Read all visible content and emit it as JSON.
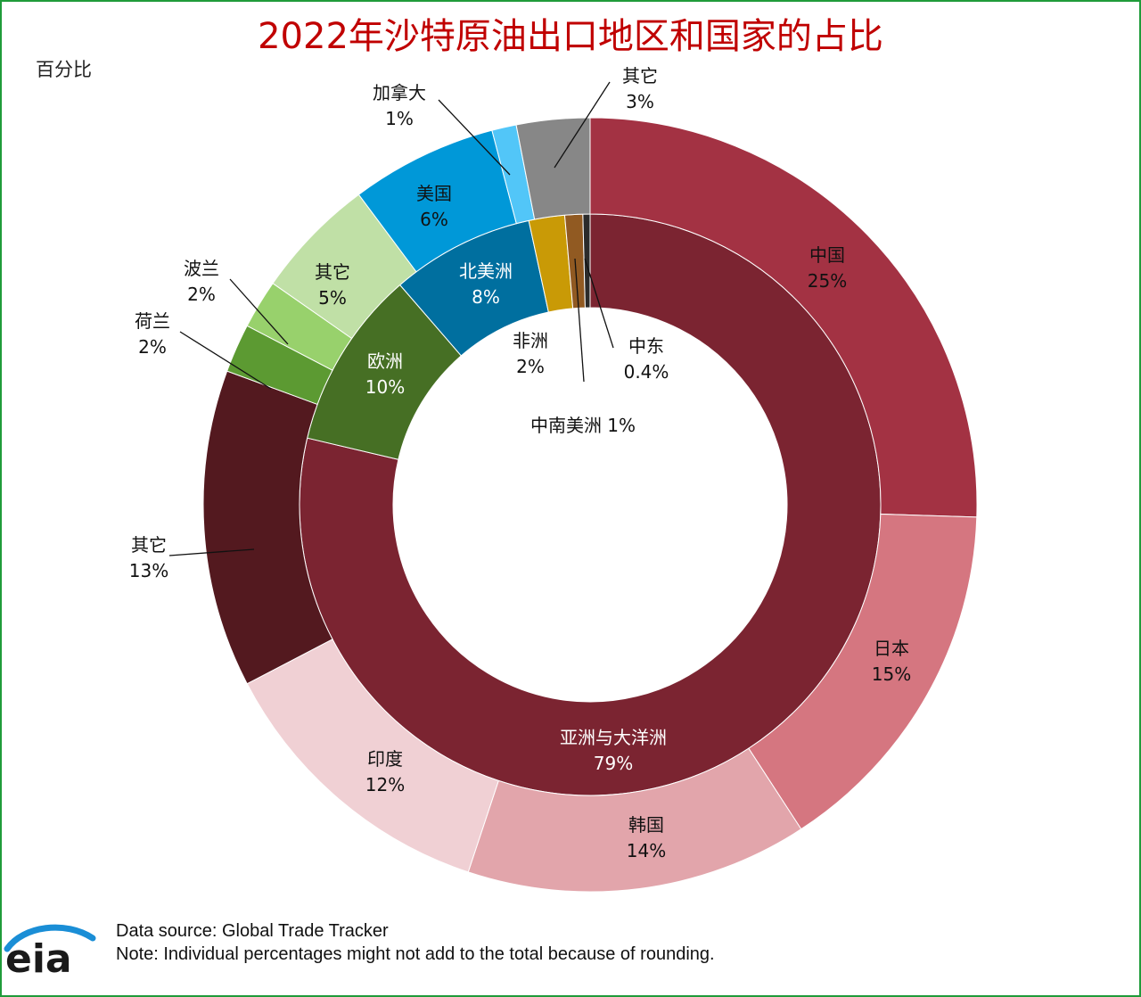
{
  "title": "2022年沙特原油出口地区和国家的占比",
  "unit_label": "百分比",
  "footer": {
    "source": "Data source: Global Trade Tracker",
    "note": "Note: Individual  percentages might not add to the total because of rounding."
  },
  "logo_text": "eia",
  "chart_data": {
    "type": "pie",
    "subtype": "nested-donut",
    "title": "2022年沙特原油出口地区和国家的占比",
    "unit": "百分比",
    "inner_ring": [
      {
        "name": "亚洲与大洋洲",
        "value": 79,
        "label": "79%",
        "color": "#7b2431"
      },
      {
        "name": "欧洲",
        "value": 10,
        "label": "10%",
        "color": "#466f24"
      },
      {
        "name": "北美洲",
        "value": 8,
        "label": "8%",
        "color": "#006f9f"
      },
      {
        "name": "非洲",
        "value": 2,
        "label": "2%",
        "color": "#c99a06"
      },
      {
        "name": "中南美洲",
        "value": 1,
        "label": "1%",
        "color": "#915a22"
      },
      {
        "name": "中东",
        "value": 0.4,
        "label": "0.4%",
        "color": "#2b2b2b"
      }
    ],
    "outer_ring": [
      {
        "name": "中国",
        "value": 25,
        "label": "25%",
        "color": "#a33243"
      },
      {
        "name": "日本",
        "value": 15,
        "label": "15%",
        "color": "#d57680"
      },
      {
        "name": "韩国",
        "value": 14,
        "label": "14%",
        "color": "#e2a5ab"
      },
      {
        "name": "印度",
        "value": 12,
        "label": "12%",
        "color": "#f0d0d4"
      },
      {
        "name": "其它",
        "value": 13,
        "label": "13%",
        "color": "#53191f"
      },
      {
        "name": "荷兰",
        "value": 2,
        "label": "2%",
        "color": "#5c9a32"
      },
      {
        "name": "波兰",
        "value": 2,
        "label": "2%",
        "color": "#98d16c"
      },
      {
        "name": "其它",
        "value": 5,
        "label": "5%",
        "color": "#c0e0a6"
      },
      {
        "name": "美国",
        "value": 6,
        "label": "6%",
        "color": "#0098d8"
      },
      {
        "name": "加拿大",
        "value": 1,
        "label": "1%",
        "color": "#52c6f8"
      },
      {
        "name": "其它",
        "value": 3,
        "label": "3%",
        "color": "#878787"
      }
    ]
  }
}
